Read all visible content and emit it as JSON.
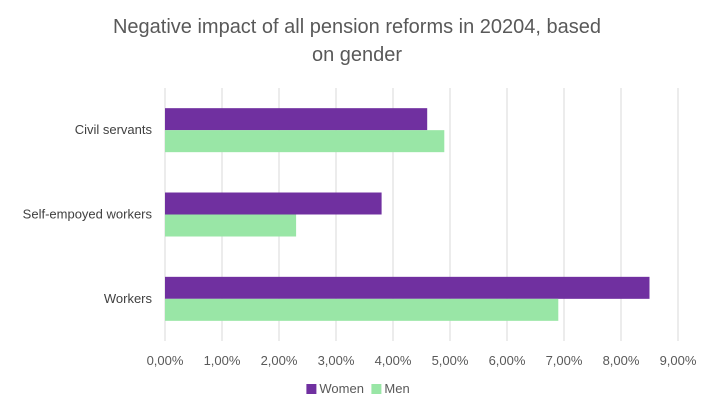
{
  "chart_data": {
    "type": "bar",
    "orientation": "horizontal",
    "title_lines": [
      "Negative impact of all pension reforms in 20204, based",
      "on gender"
    ],
    "categories": [
      "Workers",
      "Self-empoyed workers",
      "Civil servants"
    ],
    "series": [
      {
        "name": "Women",
        "color": "#7030a0",
        "values": [
          8.5,
          3.8,
          4.6
        ]
      },
      {
        "name": "Men",
        "color": "#99e6a6",
        "values": [
          6.9,
          2.3,
          4.9
        ]
      }
    ],
    "x_ticks": [
      "0,00%",
      "1,00%",
      "2,00%",
      "3,00%",
      "4,00%",
      "5,00%",
      "6,00%",
      "7,00%",
      "8,00%",
      "9,00%"
    ],
    "xlim": [
      0,
      9
    ],
    "grid": true,
    "legend_position": "bottom"
  }
}
